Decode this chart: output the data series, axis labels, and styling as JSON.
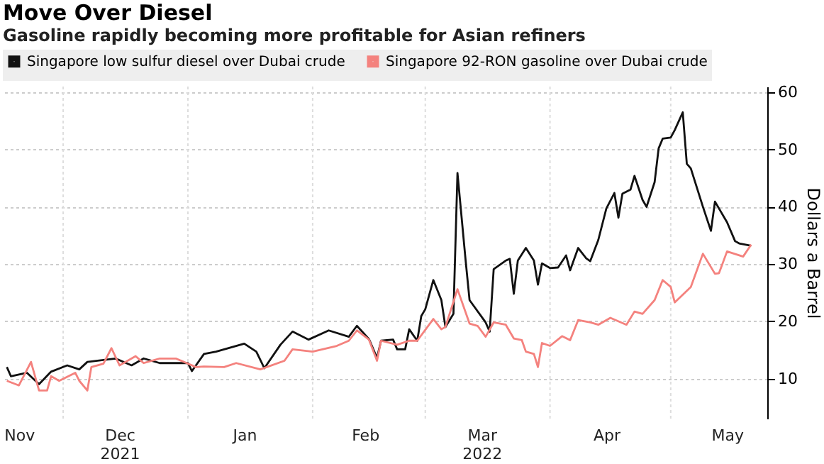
{
  "chart_data": {
    "type": "line",
    "title": "Move Over Diesel",
    "subtitle": "Gasoline rapidly becoming more profitable for Asian refiners",
    "ylabel": "Dollars a Barrel",
    "xlim": [
      "2021-11-16",
      "2022-05-25"
    ],
    "ylim": [
      3,
      61
    ],
    "yticks": [
      10,
      20,
      30,
      40,
      50,
      60
    ],
    "xticks": [
      {
        "value": "2021-11-20",
        "label": "Nov"
      },
      {
        "value": "2021-12-01",
        "label": null
      },
      {
        "value": "2021-12-15",
        "label": "Dec\n2021"
      },
      {
        "value": "2022-01-01",
        "label": null
      },
      {
        "value": "2022-01-15",
        "label": "Jan"
      },
      {
        "value": "2022-02-01",
        "label": null
      },
      {
        "value": "2022-02-14",
        "label": "Feb"
      },
      {
        "value": "2022-03-01",
        "label": null
      },
      {
        "value": "2022-03-15",
        "label": "Mar\n2022"
      },
      {
        "value": "2022-04-01",
        "label": null
      },
      {
        "value": "2022-04-15",
        "label": "Apr"
      },
      {
        "value": "2022-05-01",
        "label": null
      },
      {
        "value": "2022-05-15",
        "label": "May"
      }
    ],
    "grid": true,
    "legend": "top left",
    "line_style": "solid",
    "series": [
      {
        "name": "Singapore low sulfur diesel over Dubai crude",
        "color": "#111111",
        "x": [
          "2021-11-17",
          "2021-11-18",
          "2021-11-22",
          "2021-11-25",
          "2021-11-28",
          "2021-12-02",
          "2021-12-05",
          "2021-12-07",
          "2021-12-14",
          "2021-12-18",
          "2021-12-21",
          "2021-12-25",
          "2022-01-01",
          "2022-01-02",
          "2022-01-05",
          "2022-01-08",
          "2022-01-15",
          "2022-01-18",
          "2022-01-20",
          "2022-01-24",
          "2022-01-27",
          "2022-01-31",
          "2022-02-05",
          "2022-02-10",
          "2022-02-12",
          "2022-02-15",
          "2022-02-17",
          "2022-02-18",
          "2022-02-21",
          "2022-02-22",
          "2022-02-24",
          "2022-02-25",
          "2022-02-27",
          "2022-02-28",
          "2022-03-01",
          "2022-03-03",
          "2022-03-05",
          "2022-03-06",
          "2022-03-08",
          "2022-03-09",
          "2022-03-11",
          "2022-03-12",
          "2022-03-16",
          "2022-03-17",
          "2022-03-18",
          "2022-03-21",
          "2022-03-22",
          "2022-03-23",
          "2022-03-24",
          "2022-03-26",
          "2022-03-28",
          "2022-03-29",
          "2022-03-30",
          "2022-04-01",
          "2022-04-03",
          "2022-04-05",
          "2022-04-06",
          "2022-04-08",
          "2022-04-10",
          "2022-04-11",
          "2022-04-13",
          "2022-04-15",
          "2022-04-17",
          "2022-04-18",
          "2022-04-19",
          "2022-04-21",
          "2022-04-22",
          "2022-04-24",
          "2022-04-25",
          "2022-04-27",
          "2022-04-28",
          "2022-04-29",
          "2022-05-01",
          "2022-05-02",
          "2022-05-04",
          "2022-05-05",
          "2022-05-06",
          "2022-05-09",
          "2022-05-11",
          "2022-05-12",
          "2022-05-15",
          "2022-05-17",
          "2022-05-18",
          "2022-05-21"
        ],
        "values": [
          12.0,
          10.4,
          11.0,
          9.0,
          11.2,
          12.3,
          11.6,
          12.9,
          13.5,
          12.3,
          13.5,
          12.7,
          12.7,
          11.3,
          14.3,
          14.7,
          16.1,
          14.7,
          11.8,
          15.9,
          18.2,
          16.8,
          18.4,
          17.3,
          19.2,
          16.9,
          13.6,
          16.6,
          16.8,
          15.1,
          15.1,
          18.6,
          16.6,
          20.9,
          22.1,
          27.2,
          23.7,
          19.0,
          21.3,
          45.9,
          30.8,
          23.7,
          19.8,
          18.2,
          29.1,
          30.6,
          30.9,
          24.8,
          30.6,
          32.8,
          30.6,
          26.4,
          30.1,
          29.3,
          29.4,
          31.5,
          28.9,
          32.8,
          31.0,
          30.5,
          34.2,
          39.7,
          42.4,
          38.1,
          42.3,
          43.0,
          45.4,
          41.2,
          40.0,
          44.3,
          50.2,
          51.9,
          52.1,
          53.4,
          56.5,
          47.5,
          46.7,
          40.0,
          35.8,
          40.9,
          37.3,
          34.0,
          33.6,
          33.2
        ]
      },
      {
        "name": "Singapore 92-RON gasoline over Dubai crude",
        "color": "#f4827e",
        "x": [
          "2021-11-17",
          "2021-11-20",
          "2021-11-23",
          "2021-11-25",
          "2021-11-27",
          "2021-11-28",
          "2021-11-30",
          "2021-12-04",
          "2021-12-05",
          "2021-12-07",
          "2021-12-08",
          "2021-12-11",
          "2021-12-13",
          "2021-12-15",
          "2021-12-19",
          "2021-12-21",
          "2021-12-25",
          "2021-12-29",
          "2022-01-03",
          "2022-01-05",
          "2022-01-10",
          "2022-01-13",
          "2022-01-19",
          "2022-01-25",
          "2022-01-27",
          "2022-02-01",
          "2022-02-07",
          "2022-02-10",
          "2022-02-12",
          "2022-02-15",
          "2022-02-17",
          "2022-02-18",
          "2022-02-22",
          "2022-02-25",
          "2022-02-27",
          "2022-03-03",
          "2022-03-05",
          "2022-03-06",
          "2022-03-09",
          "2022-03-12",
          "2022-03-14",
          "2022-03-16",
          "2022-03-18",
          "2022-03-21",
          "2022-03-23",
          "2022-03-25",
          "2022-03-26",
          "2022-03-28",
          "2022-03-29",
          "2022-03-30",
          "2022-04-01",
          "2022-04-04",
          "2022-04-06",
          "2022-04-08",
          "2022-04-11",
          "2022-04-13",
          "2022-04-16",
          "2022-04-20",
          "2022-04-22",
          "2022-04-24",
          "2022-04-27",
          "2022-04-29",
          "2022-05-01",
          "2022-05-02",
          "2022-05-06",
          "2022-05-09",
          "2022-05-12",
          "2022-05-13",
          "2022-05-15",
          "2022-05-19",
          "2022-05-21"
        ],
        "values": [
          9.6,
          8.8,
          12.9,
          7.9,
          7.9,
          10.4,
          9.6,
          11.0,
          9.6,
          7.9,
          12.0,
          12.6,
          15.3,
          12.3,
          13.9,
          12.7,
          13.5,
          13.5,
          12.0,
          12.1,
          12.0,
          12.7,
          11.6,
          13.1,
          15.1,
          14.7,
          15.7,
          16.6,
          18.4,
          16.8,
          13.1,
          16.6,
          15.9,
          16.6,
          16.6,
          20.4,
          18.6,
          19.0,
          25.6,
          19.6,
          19.2,
          17.3,
          19.8,
          19.4,
          17.0,
          16.7,
          14.7,
          14.3,
          12.0,
          16.2,
          15.7,
          17.4,
          16.7,
          20.2,
          19.8,
          19.4,
          20.6,
          19.4,
          21.7,
          21.3,
          23.7,
          27.2,
          26.0,
          23.3,
          26.0,
          31.8,
          28.3,
          28.4,
          32.2,
          31.3,
          33.4
        ]
      }
    ]
  }
}
